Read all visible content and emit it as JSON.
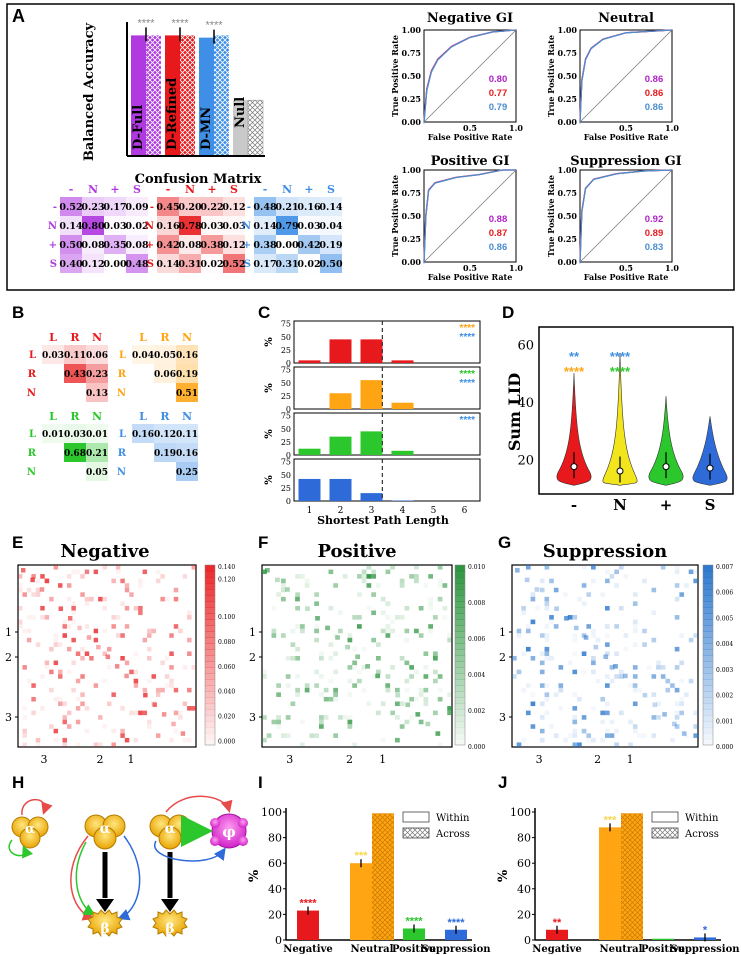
{
  "panel_letters": {
    "A": "A",
    "B": "B",
    "C": "C",
    "D": "D",
    "E": "E",
    "F": "F",
    "G": "G",
    "H": "H",
    "I": "I",
    "J": "J"
  },
  "colors": {
    "purple": "#b03ae0",
    "red": "#e8191c",
    "blue": "#3f8fe6",
    "gray": "#c9c9c9",
    "orange": "#ffa412",
    "green": "#2cc72c",
    "yellow": "#f2e51c",
    "darkblue": "#2f6bd8"
  },
  "chart_data": [
    {
      "id": "A-bars",
      "type": "bar",
      "ylabel": "Balanced Accuracy",
      "categories": [
        "D-Full",
        "D-Refined",
        "D-MN",
        "Null"
      ],
      "values": [
        0.54,
        0.54,
        0.53,
        0.25
      ],
      "hatched_values": [
        0.54,
        0.54,
        0.54,
        0.25
      ],
      "significance": [
        "****",
        "****",
        "****",
        ""
      ],
      "ylim": [
        0,
        0.6
      ]
    },
    {
      "id": "A-confusion",
      "type": "heatmap",
      "title": "Confusion Matrix",
      "labels": [
        "-",
        "N",
        "+",
        "S"
      ],
      "matrices": [
        [
          [
            "0.52",
            "0.23",
            "0.17",
            "0.09"
          ],
          [
            "0.14",
            "0.80",
            "0.03",
            "0.02"
          ],
          [
            "0.50",
            "0.08",
            "0.35",
            "0.08"
          ],
          [
            "0.40",
            "0.12",
            "0.00",
            "0.48"
          ]
        ],
        [
          [
            "0.45",
            "0.20",
            "0.22",
            "0.12"
          ],
          [
            "0.16",
            "0.78",
            "0.03",
            "0.03"
          ],
          [
            "0.42",
            "0.08",
            "0.38",
            "0.12"
          ],
          [
            "0.14",
            "0.31",
            "0.02",
            "0.52"
          ]
        ],
        [
          [
            "0.48",
            "0.21",
            "0.16",
            "0.14"
          ],
          [
            "0.14",
            "0.79",
            "0.03",
            "0.04"
          ],
          [
            "0.38",
            "0.00",
            "0.42",
            "0.19"
          ],
          [
            "0.17",
            "0.31",
            "0.02",
            "0.50"
          ]
        ]
      ]
    },
    {
      "id": "A-roc",
      "type": "line",
      "xlabel": "False Positive Rate",
      "ylabel": "True Positive Rate",
      "xticks": [
        "0.5",
        "1.0"
      ],
      "yticks": [
        "0.00",
        "0.25",
        "0.50",
        "0.75",
        "1.00"
      ],
      "panels": [
        {
          "title": "Negative GI",
          "auc": [
            "0.80",
            "0.77",
            "0.79"
          ]
        },
        {
          "title": "Neutral",
          "auc": [
            "0.86",
            "0.86",
            "0.86"
          ]
        },
        {
          "title": "Positive GI",
          "auc": [
            "0.88",
            "0.87",
            "0.86"
          ]
        },
        {
          "title": "Suppression GI",
          "auc": [
            "0.92",
            "0.89",
            "0.83"
          ]
        }
      ]
    },
    {
      "id": "B",
      "type": "heatmap",
      "labels": [
        "L",
        "R",
        "N"
      ],
      "matrices": [
        [
          [
            "0.03",
            "0.11",
            "0.06"
          ],
          [
            "",
            "0.43",
            "0.23"
          ],
          [
            "",
            "",
            "0.13"
          ]
        ],
        [
          [
            "0.04",
            "0.05",
            "0.16"
          ],
          [
            "",
            "0.06",
            "0.19"
          ],
          [
            "",
            "",
            "0.51"
          ]
        ],
        [
          [
            "0.01",
            "0.03",
            "0.01"
          ],
          [
            "",
            "0.68",
            "0.21"
          ],
          [
            "",
            "",
            "0.05"
          ]
        ],
        [
          [
            "0.16",
            "0.12",
            "0.11"
          ],
          [
            "",
            "0.19",
            "0.16"
          ],
          [
            "",
            "",
            "0.25"
          ]
        ]
      ]
    },
    {
      "id": "C",
      "type": "bar",
      "xlabel": "Shortest Path Length",
      "ylabel": "%",
      "xticks": [
        "1",
        "2",
        "3",
        "4",
        "5",
        "6"
      ],
      "yticks": [
        "0",
        "25",
        "50",
        "75"
      ],
      "rows": [
        {
          "values": [
            5,
            45,
            45,
            5
          ],
          "sig": [
            "****",
            "****"
          ]
        },
        {
          "values": [
            0,
            30,
            55,
            12
          ],
          "sig": [
            "****",
            "****"
          ]
        },
        {
          "values": [
            12,
            35,
            45,
            8
          ],
          "sig": [
            "****"
          ]
        },
        {
          "values": [
            42,
            42,
            15,
            1
          ],
          "sig": []
        }
      ]
    },
    {
      "id": "D",
      "type": "violin",
      "ylabel": "Sum LID",
      "categories": [
        "-",
        "N",
        "+",
        "S"
      ],
      "yticks": [
        "20",
        "40",
        "60"
      ],
      "ylim": [
        8,
        66
      ],
      "medians": [
        17.5,
        16,
        17.5,
        17
      ],
      "sig_top": [
        "**",
        "****",
        "",
        ""
      ],
      "sig_bottom": [
        "****",
        "****",
        "",
        ""
      ]
    },
    {
      "id": "EFG",
      "type": "heatmap",
      "panels": [
        {
          "title": "Negative",
          "colorbar": [
            "0.140",
            "0.120",
            "0.100",
            "0.080",
            "0.060",
            "0.040",
            "0.020",
            "0.000"
          ]
        },
        {
          "title": "Positive",
          "colorbar": [
            "0.010",
            "0.008",
            "0.006",
            "0.004",
            "0.002",
            "0.000"
          ]
        },
        {
          "title": "Suppression",
          "colorbar": [
            "0.007",
            "0.006",
            "0.005",
            "0.004",
            "0.003",
            "0.002",
            "0.001",
            "0.000"
          ]
        }
      ],
      "yticks": [
        "1",
        "2",
        "3"
      ],
      "xticks": [
        "3",
        "2",
        "1"
      ]
    },
    {
      "id": "I",
      "type": "bar",
      "ylabel": "%",
      "categories": [
        "Negative",
        "Neutral",
        "Positive",
        "Suppression"
      ],
      "within": [
        23,
        60,
        9,
        8
      ],
      "across": [
        0,
        99,
        0,
        0
      ],
      "sig": [
        "****",
        "***",
        "****",
        "****"
      ],
      "legend": [
        "Within",
        "Across"
      ],
      "yticks": [
        "0",
        "20",
        "40",
        "60",
        "80",
        "100"
      ]
    },
    {
      "id": "J",
      "type": "bar",
      "ylabel": "%",
      "categories": [
        "Negative",
        "Neutral",
        "Positive",
        "Suppression"
      ],
      "within": [
        8,
        88,
        1,
        2
      ],
      "across": [
        0,
        99,
        0,
        0
      ],
      "sig": [
        "**",
        "***",
        "",
        "*"
      ],
      "legend": [
        "Within",
        "Across"
      ],
      "yticks": [
        "0",
        "20",
        "40",
        "60",
        "80",
        "100"
      ]
    }
  ],
  "diagram": {
    "alpha": "α",
    "beta": "β",
    "phi": "φ"
  }
}
